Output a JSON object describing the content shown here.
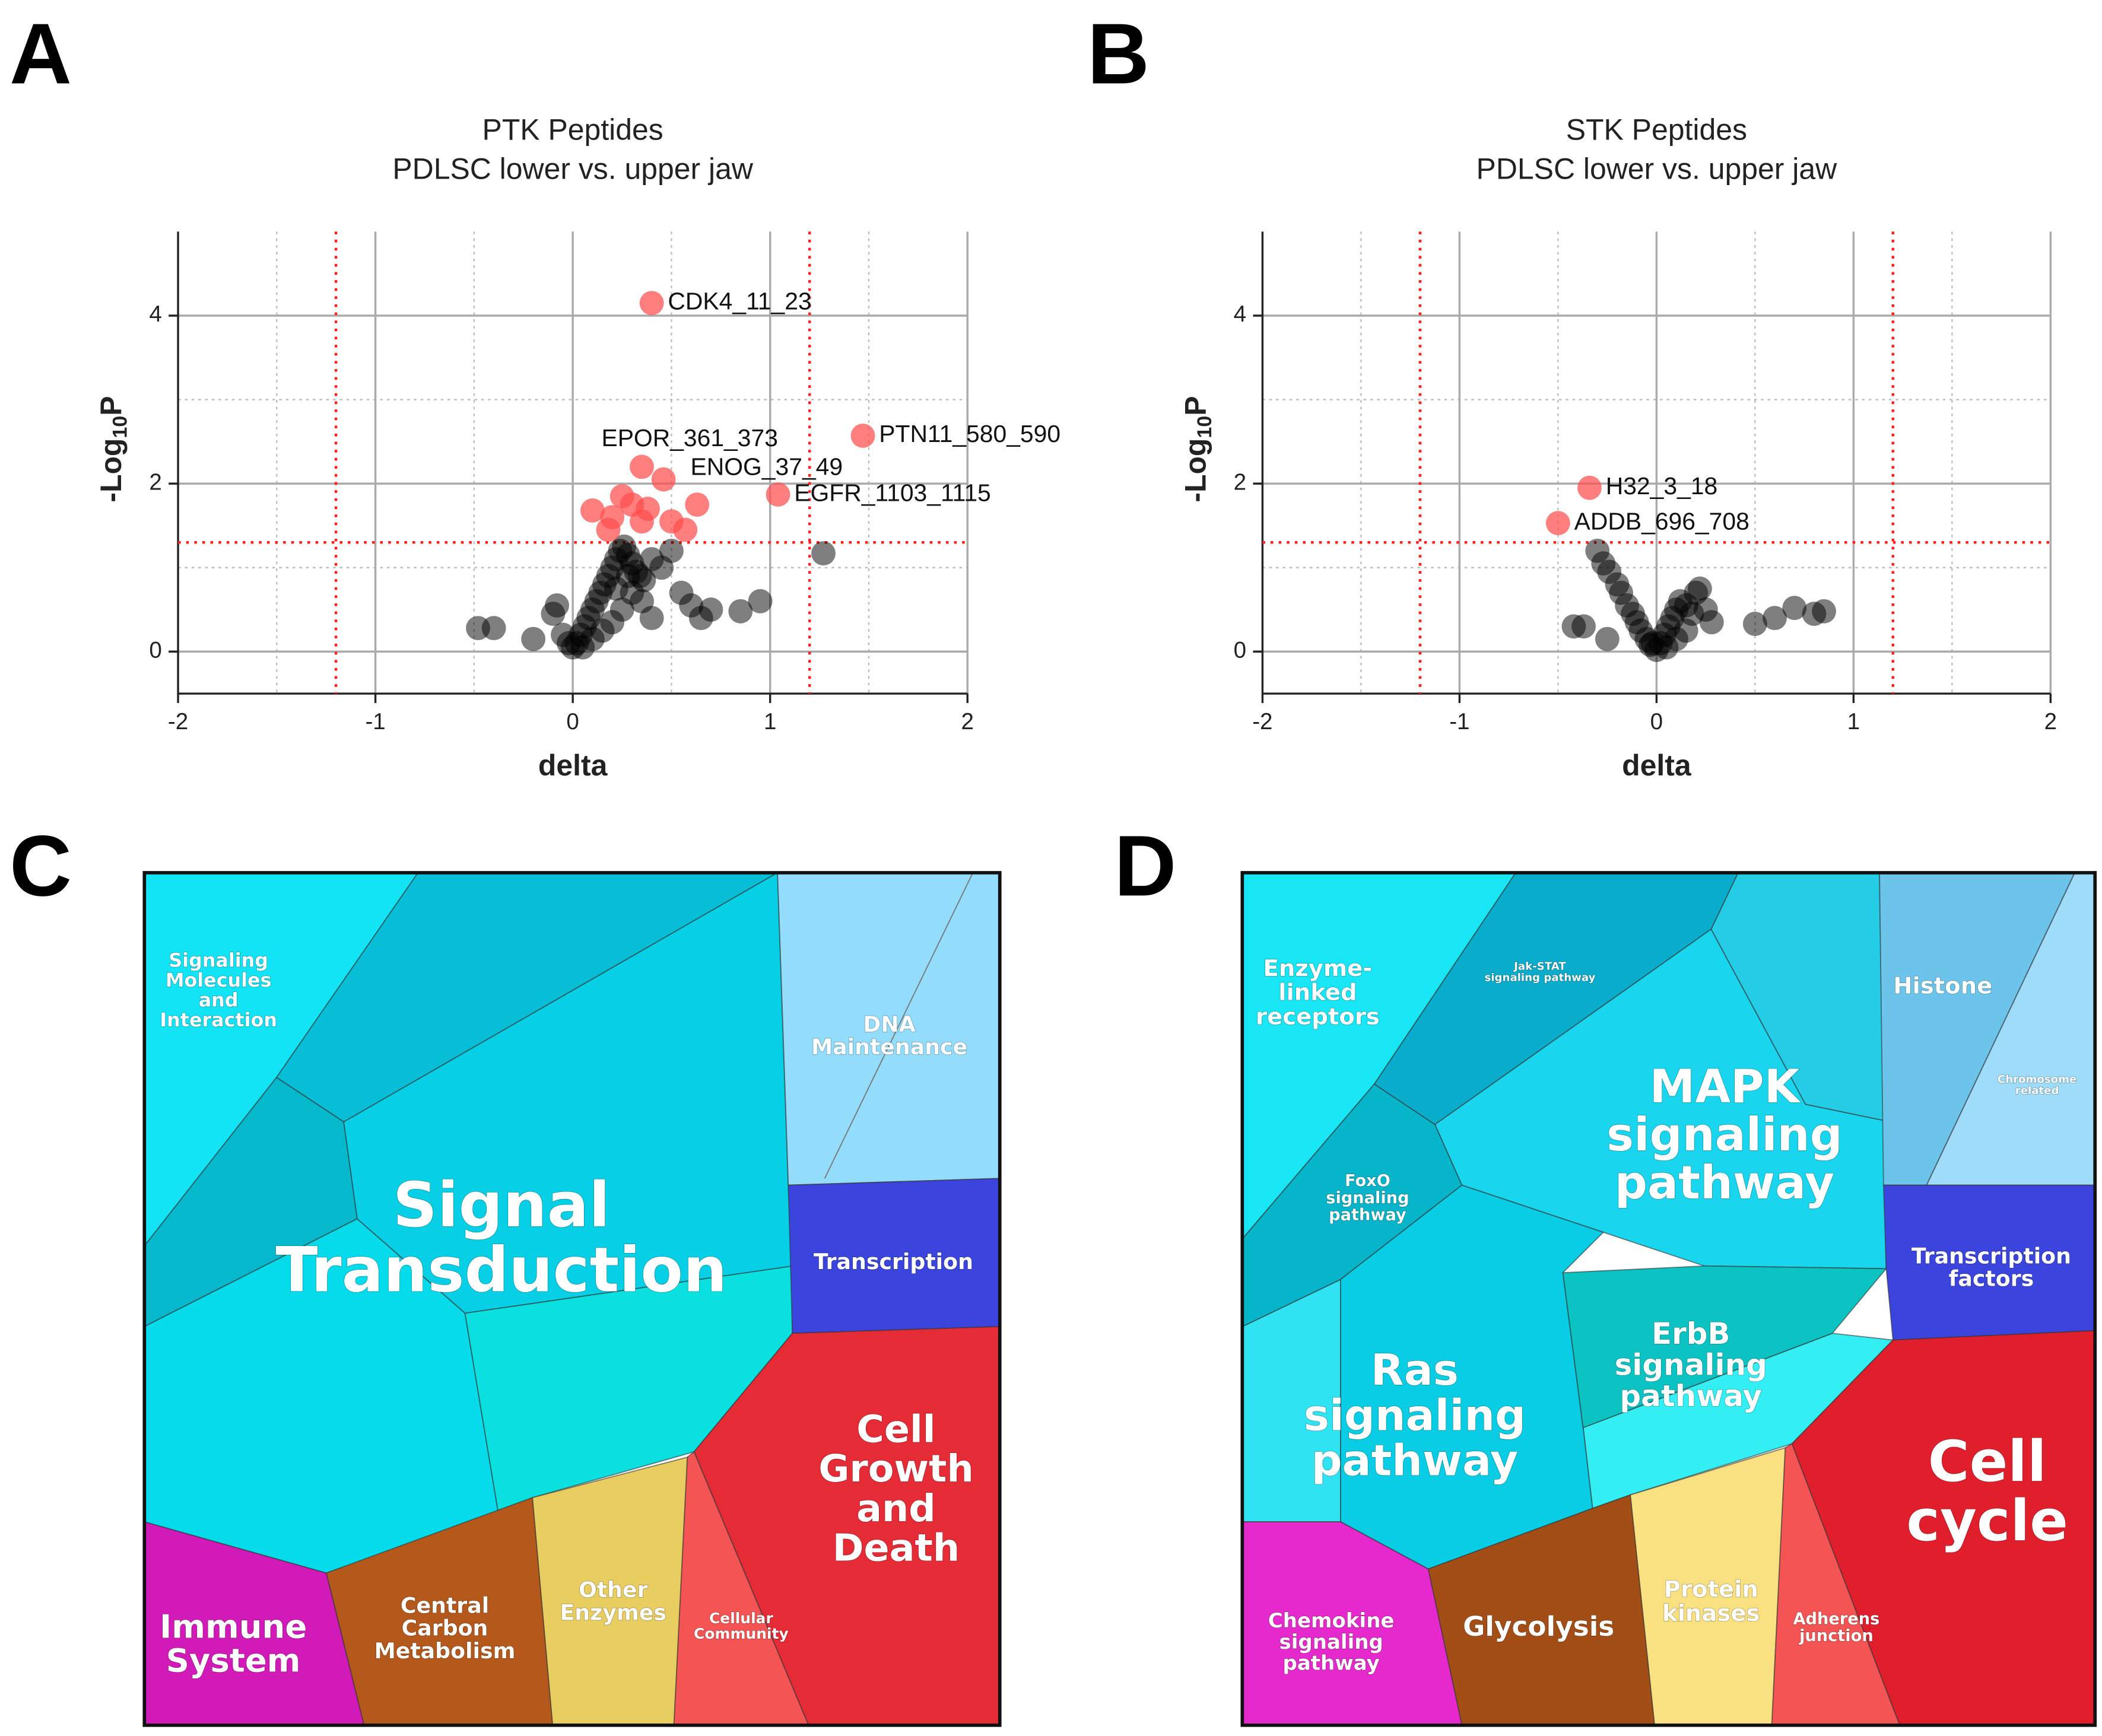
{
  "chart_data": [
    {
      "type": "scatter",
      "panel": "A",
      "title": "PTK Peptides",
      "subtitle": "PDLSC lower vs. upper jaw",
      "xlabel": "delta",
      "ylabel": {
        "prefix": "-Log",
        "sub": "10",
        "suffix": "P"
      },
      "xlim": [
        -2,
        2
      ],
      "ylim": [
        -0.5,
        5
      ],
      "xticks": [
        -2,
        -1,
        0,
        1,
        2
      ],
      "yticks": [
        0,
        2,
        4
      ],
      "minor_xticks": [
        -1.5,
        -0.5,
        0.5,
        1.5
      ],
      "minor_yticks": [
        1,
        3
      ],
      "grid": true,
      "thresholds": {
        "x": [
          -1.2,
          1.2
        ],
        "y": 1.3,
        "color": "#ff2020"
      },
      "series": [
        {
          "color": "#000000",
          "x": [
            -0.48,
            -0.4,
            -0.2,
            -0.1,
            -0.08,
            -0.05,
            0,
            0.02,
            0.04,
            0.06,
            0.08,
            0.1,
            0.12,
            0.14,
            0.16,
            0.18,
            0.2,
            0.22,
            0.24,
            0.26,
            0.28,
            0.3,
            0.32,
            0.34,
            0.36,
            0.4,
            0.45,
            0.5,
            0.55,
            0.6,
            0.65,
            0.7,
            0.85,
            0.95,
            1.27,
            0.3,
            0.25,
            0.2,
            0.15,
            0.1,
            0.05,
            -0.02,
            0.35,
            0.4,
            0.28,
            0.22
          ],
          "values": [
            0.28,
            0.28,
            0.15,
            0.45,
            0.55,
            0.2,
            0.05,
            0.1,
            0.2,
            0.3,
            0.4,
            0.5,
            0.6,
            0.7,
            0.8,
            0.9,
            1.0,
            1.1,
            1.2,
            1.25,
            1.15,
            1.05,
            0.95,
            0.9,
            0.85,
            1.1,
            1.0,
            1.2,
            0.7,
            0.55,
            0.4,
            0.5,
            0.48,
            0.6,
            1.17,
            0.7,
            0.5,
            0.35,
            0.25,
            0.15,
            0.05,
            0.1,
            0.6,
            0.4,
            0.9,
            0.75
          ]
        },
        {
          "color": "#ff4d4d",
          "x": [
            0.4,
            1.47,
            0.35,
            0.46,
            1.04,
            0.1,
            0.2,
            0.25,
            0.3,
            0.38,
            0.5,
            0.57,
            0.63,
            0.35,
            0.18
          ],
          "values": [
            4.15,
            2.57,
            2.2,
            2.05,
            1.87,
            1.68,
            1.6,
            1.85,
            1.75,
            1.7,
            1.55,
            1.45,
            1.75,
            1.55,
            1.45
          ],
          "point_labels": [
            "CDK4_11_23",
            "PTN11_580_590",
            "EPOR_361_373",
            "ENOG_37_49",
            "EGFR_1103_1115",
            null,
            null,
            null,
            null,
            null,
            null,
            null,
            null,
            null,
            null
          ]
        }
      ]
    },
    {
      "type": "scatter",
      "panel": "B",
      "title": "STK Peptides",
      "subtitle": "PDLSC lower vs. upper jaw",
      "xlabel": "delta",
      "ylabel": {
        "prefix": "-Log",
        "sub": "10",
        "suffix": "P"
      },
      "xlim": [
        -2,
        2
      ],
      "ylim": [
        -0.5,
        5
      ],
      "xticks": [
        -2,
        -1,
        0,
        1,
        2
      ],
      "yticks": [
        0,
        2,
        4
      ],
      "minor_xticks": [
        -1.5,
        -0.5,
        0.5,
        1.5
      ],
      "minor_yticks": [
        1,
        3
      ],
      "grid": true,
      "thresholds": {
        "x": [
          -1.2,
          1.2
        ],
        "y": 1.3,
        "color": "#ff2020"
      },
      "series": [
        {
          "color": "#000000",
          "x": [
            -0.42,
            -0.37,
            -0.3,
            -0.27,
            -0.24,
            -0.2,
            -0.18,
            -0.15,
            -0.12,
            -0.1,
            -0.08,
            -0.05,
            -0.03,
            0,
            0.02,
            0.04,
            0.06,
            0.08,
            0.1,
            0.12,
            0.15,
            0.18,
            0.2,
            0.22,
            0.25,
            0.28,
            0.5,
            0.6,
            0.7,
            0.8,
            0.85,
            -0.25,
            0.05,
            0.1,
            0.15,
            -0.02
          ],
          "values": [
            0.3,
            0.3,
            1.2,
            1.05,
            0.95,
            0.8,
            0.7,
            0.55,
            0.45,
            0.35,
            0.25,
            0.15,
            0.08,
            0.02,
            0.1,
            0.2,
            0.3,
            0.4,
            0.5,
            0.6,
            0.55,
            0.45,
            0.7,
            0.75,
            0.5,
            0.35,
            0.33,
            0.4,
            0.52,
            0.45,
            0.48,
            0.15,
            0.05,
            0.15,
            0.25,
            0.1
          ]
        },
        {
          "color": "#ff4d4d",
          "x": [
            -0.34,
            -0.5
          ],
          "values": [
            1.95,
            1.53
          ],
          "point_labels": [
            "H32_3_18",
            "ADDB_696_708"
          ]
        }
      ]
    },
    {
      "type": "treemap",
      "panel": "C",
      "cells": [
        {
          "label": [
            "Signaling",
            "Molecules",
            "and",
            "Interaction"
          ],
          "color": "#12e3f5"
        },
        {
          "label": [
            "Signal",
            "Transduction"
          ],
          "color": "#06cfe6"
        },
        {
          "label": [
            "DNA",
            "Maintenance"
          ],
          "color": "#93dcfb"
        },
        {
          "label": [
            "Transcription"
          ],
          "color": "#3b45dd"
        },
        {
          "label": [
            "Cell",
            "Growth",
            "and",
            "Death"
          ],
          "color": "#e52b36"
        },
        {
          "label": [
            "Cellular",
            "Community"
          ],
          "color": "#f45454"
        },
        {
          "label": [
            "Other",
            "Enzymes"
          ],
          "color": "#e8cd60"
        },
        {
          "label": [
            "Central",
            "Carbon",
            "Metabolism"
          ],
          "color": "#b5581b"
        },
        {
          "label": [
            "Immune",
            "System"
          ],
          "color": "#d11ab8"
        }
      ]
    },
    {
      "type": "treemap",
      "panel": "D",
      "cells": [
        {
          "label": [
            "Enzyme-",
            "linked",
            "receptors"
          ],
          "color": "#19e6f5"
        },
        {
          "label": [
            "Jak-STAT",
            "signaling pathway"
          ],
          "color": "#0aaccc"
        },
        {
          "label": [
            "MAPK",
            "signaling",
            "pathway"
          ],
          "color": "#19d5ee"
        },
        {
          "label": [
            "FoxO",
            "signaling",
            "pathway"
          ],
          "color": "#06b5ca"
        },
        {
          "label": [
            "Ras",
            "signaling",
            "pathway"
          ],
          "color": "#08cde4"
        },
        {
          "label": [
            "ErbB",
            "signaling",
            "pathway"
          ],
          "color": "#0cc3c3"
        },
        {
          "label": [
            "Histone"
          ],
          "color": "#6dc4ea"
        },
        {
          "label": [
            "Chromosome",
            "related"
          ],
          "color": "#9edcfa"
        },
        {
          "label": [
            "Transcription",
            "factors"
          ],
          "color": "#3b45dd"
        },
        {
          "label": [
            "Cell",
            "cycle"
          ],
          "color": "#e01e2c"
        },
        {
          "label": [
            "Adherens",
            "junction"
          ],
          "color": "#f45454"
        },
        {
          "label": [
            "Protein",
            "kinases"
          ],
          "color": "#f9e080"
        },
        {
          "label": [
            "Glycolysis"
          ],
          "color": "#a34e16"
        },
        {
          "label": [
            "Chemokine",
            "signaling",
            "pathway"
          ],
          "color": "#e629cc"
        }
      ]
    }
  ]
}
